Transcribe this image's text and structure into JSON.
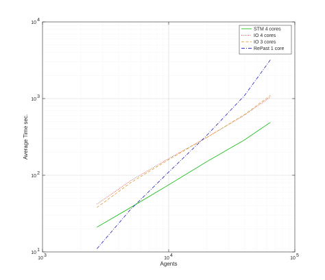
{
  "chart_data": {
    "type": "line",
    "xlabel": "Agents",
    "ylabel": "Average Time sec.",
    "xscale": "log",
    "yscale": "log",
    "xlim": [
      1000,
      100000
    ],
    "ylim": [
      10,
      10000
    ],
    "x_ticks": [
      {
        "value": 1000,
        "base": "10",
        "exp": "3"
      },
      {
        "value": 10000,
        "base": "10",
        "exp": "4"
      },
      {
        "value": 100000,
        "base": "10",
        "exp": "5"
      }
    ],
    "y_ticks": [
      {
        "value": 10,
        "base": "10",
        "exp": "1"
      },
      {
        "value": 100,
        "base": "10",
        "exp": "2"
      },
      {
        "value": 1000,
        "base": "10",
        "exp": "3"
      },
      {
        "value": 10000,
        "base": "10",
        "exp": "4"
      }
    ],
    "grid": true,
    "minor_grid": true,
    "legend_position": "top-right",
    "series": [
      {
        "name": "STM 4 cores",
        "color": "#1fbf1f",
        "dash": "solid",
        "x": [
          2700,
          5000,
          10000,
          20000,
          40000,
          64000
        ],
        "y": [
          21,
          38,
          75,
          150,
          290,
          490
        ]
      },
      {
        "name": "IO 4 cores",
        "color": "#cc4d4d",
        "dash": "dotted",
        "x": [
          2700,
          5000,
          10000,
          20000,
          40000,
          64000
        ],
        "y": [
          42,
          85,
          165,
          310,
          610,
          1050
        ]
      },
      {
        "name": "IO 3 cores",
        "color": "#e0a640",
        "dash": "dashed",
        "x": [
          2700,
          5000,
          10000,
          20000,
          40000,
          64000
        ],
        "y": [
          38,
          80,
          160,
          310,
          620,
          1100
        ]
      },
      {
        "name": "RePast 1 core",
        "color": "#3333bb",
        "dash": "dashdot",
        "x": [
          2700,
          5000,
          10000,
          20000,
          40000,
          64000
        ],
        "y": [
          11,
          36,
          110,
          330,
          1100,
          3200
        ]
      }
    ]
  }
}
